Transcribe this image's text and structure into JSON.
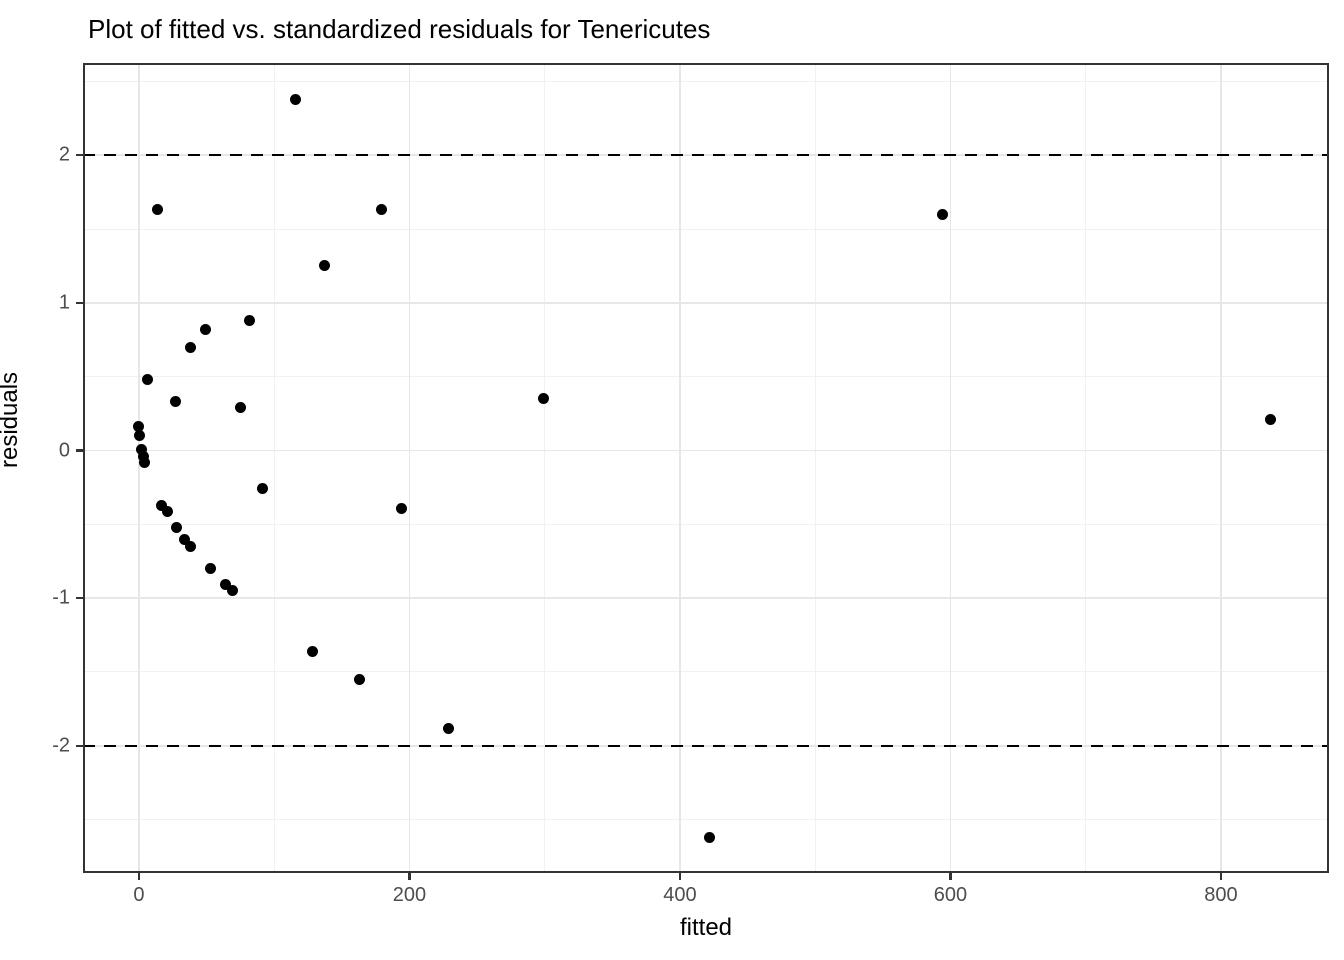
{
  "colors": {
    "background": "#ffffff",
    "panel_border": "#333333",
    "grid_major": "#e7e7e7",
    "grid_minor": "#f1f1f1",
    "point": "#000000",
    "tick_label": "#4d4d4d",
    "title_text": "#000000",
    "reference_line": "#000000"
  },
  "chart_data": {
    "type": "scatter",
    "title": "Plot of fitted vs. standardized residuals for Tenericutes",
    "xlabel": "fitted",
    "ylabel": "residuals",
    "xlim": [
      -41.4,
      879.9
    ],
    "ylim": [
      -2.862,
      2.625
    ],
    "x_ticks": [
      0,
      200,
      400,
      600,
      800
    ],
    "x_tick_labels": [
      "0",
      "200",
      "400",
      "600",
      "800"
    ],
    "y_ticks": [
      2,
      1,
      0,
      -1,
      -2
    ],
    "y_tick_labels": [
      "2",
      "1",
      "0",
      "-1",
      "-2"
    ],
    "x_minor_ticks": [
      100,
      300,
      500,
      700
    ],
    "y_minor_ticks": [
      2.5,
      1.5,
      0.5,
      -0.5,
      -1.5,
      -2.5
    ],
    "reference_lines_dashed_y": [
      2,
      -2
    ],
    "grid": "on",
    "legend": "none",
    "points": [
      {
        "fitted": 116,
        "residual": 2.38
      },
      {
        "fitted": 14,
        "residual": 1.63
      },
      {
        "fitted": 179,
        "residual": 1.63
      },
      {
        "fitted": 594,
        "residual": 1.6
      },
      {
        "fitted": 137,
        "residual": 1.25
      },
      {
        "fitted": 82,
        "residual": 0.88
      },
      {
        "fitted": 49,
        "residual": 0.82
      },
      {
        "fitted": 38,
        "residual": 0.7
      },
      {
        "fitted": 6,
        "residual": 0.48
      },
      {
        "fitted": 27,
        "residual": 0.33
      },
      {
        "fitted": 299,
        "residual": 0.35
      },
      {
        "fitted": 75,
        "residual": 0.29
      },
      {
        "fitted": 837,
        "residual": 0.21
      },
      {
        "fitted": 0,
        "residual": 0.16
      },
      {
        "fitted": 0.4,
        "residual": 0.1
      },
      {
        "fitted": 2,
        "residual": 0.01
      },
      {
        "fitted": 3,
        "residual": -0.04
      },
      {
        "fitted": 4,
        "residual": -0.08
      },
      {
        "fitted": 91,
        "residual": -0.26
      },
      {
        "fitted": 17,
        "residual": -0.37
      },
      {
        "fitted": 21,
        "residual": -0.41
      },
      {
        "fitted": 194,
        "residual": -0.39
      },
      {
        "fitted": 28,
        "residual": -0.52
      },
      {
        "fitted": 34,
        "residual": -0.6
      },
      {
        "fitted": 38,
        "residual": -0.65
      },
      {
        "fitted": 53,
        "residual": -0.8
      },
      {
        "fitted": 64,
        "residual": -0.91
      },
      {
        "fitted": 69,
        "residual": -0.95
      },
      {
        "fitted": 128,
        "residual": -1.36
      },
      {
        "fitted": 163,
        "residual": -1.55
      },
      {
        "fitted": 229,
        "residual": -1.88
      },
      {
        "fitted": 422,
        "residual": -2.62
      }
    ]
  }
}
